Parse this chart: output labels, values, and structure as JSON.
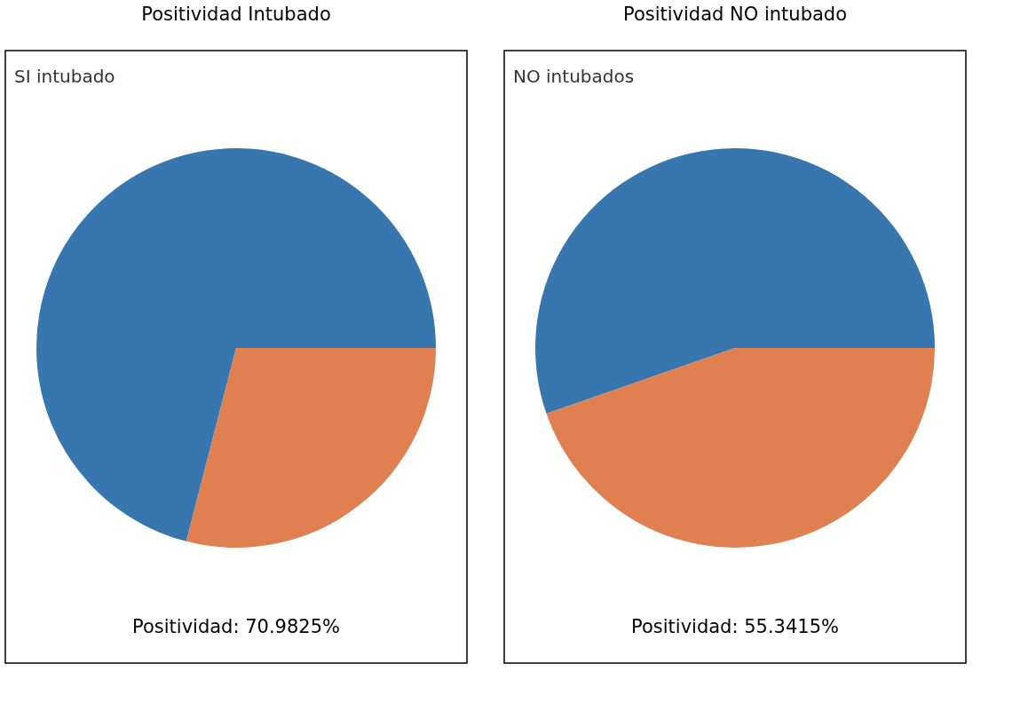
{
  "chart_data": [
    {
      "type": "pie",
      "title": "Positividad Intubado",
      "subtitle": "SI intubado",
      "categories": [
        null,
        null
      ],
      "values": [
        70.9825,
        29.0175
      ],
      "colors": [
        "#3776ae",
        "#e08050"
      ],
      "annotations": [
        "Positividad: 70.9825%"
      ],
      "legend": false
    },
    {
      "type": "pie",
      "title": "Positividad NO intubado",
      "subtitle": "NO intubados",
      "categories": [
        null,
        null
      ],
      "values": [
        55.3415,
        44.6585
      ],
      "colors": [
        "#3776ae",
        "#e08050"
      ],
      "annotations": [
        "Positividad: 55.3415%"
      ],
      "legend": false
    }
  ]
}
